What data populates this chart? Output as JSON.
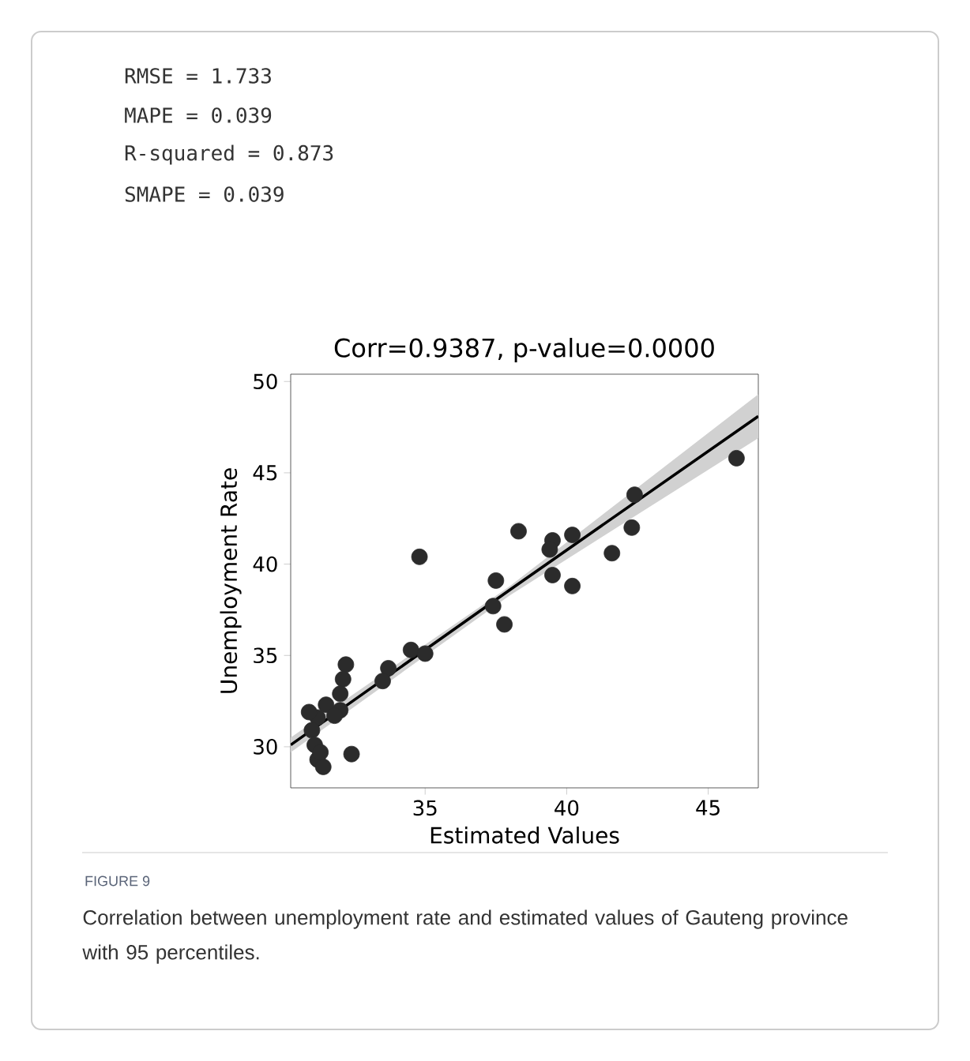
{
  "chart_data": {
    "type": "scatter",
    "title": "Corr=0.9387, p-value=0.0000",
    "xlabel": "Estimated Values",
    "ylabel": "Unemployment Rate",
    "annotations": [
      "RMSE =  1.733",
      "MAPE =  0.039",
      "R-squared =  0.873",
      "SMAPE =  0.039",
      "FIGURE 9",
      "Correlation between unemployment rate and estimated values of Gauteng province with 95 percentiles."
    ],
    "xlim": [
      30.25,
      46.77
    ],
    "ylim": [
      27.75,
      50.4
    ],
    "xticks": [
      35,
      40,
      45
    ],
    "yticks": [
      30,
      35,
      40,
      45,
      50
    ],
    "grid": false,
    "series": [
      {
        "color": "#2b2b2b",
        "marker": "circle",
        "x": [
          46.0,
          42.4,
          42.3,
          41.6,
          38.3,
          40.2,
          39.5,
          39.4,
          39.5,
          40.2,
          37.5,
          37.4,
          37.8,
          34.8,
          34.5,
          35.0,
          33.7,
          33.5,
          32.2,
          32.1,
          32.0,
          32.0,
          31.5,
          31.2,
          30.9,
          31.0,
          31.1,
          31.2,
          31.4,
          32.4,
          31.3,
          31.8
        ],
        "values": [
          45.8,
          43.8,
          42.0,
          40.6,
          41.8,
          41.6,
          41.3,
          40.8,
          39.4,
          38.8,
          39.1,
          37.7,
          36.7,
          40.4,
          35.3,
          35.1,
          34.3,
          33.6,
          34.5,
          33.7,
          32.9,
          32.0,
          32.3,
          31.6,
          31.9,
          30.9,
          30.1,
          29.3,
          28.9,
          29.6,
          29.7,
          31.7
        ]
      },
      {
        "type": "line",
        "color": "#000000",
        "marker": "none",
        "x": [
          30.25,
          38,
          46.77
        ],
        "values": [
          30.1,
          38.6,
          48.1
        ],
        "lower": [
          29.7,
          38.3,
          46.9
        ],
        "upper": [
          30.5,
          38.8,
          49.3
        ]
      }
    ]
  }
}
